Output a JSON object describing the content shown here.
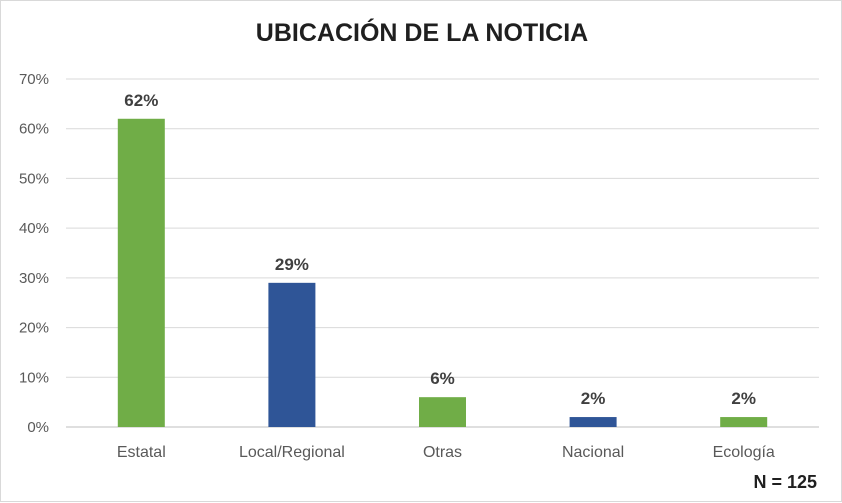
{
  "chart_data": {
    "type": "bar",
    "title": "UBICACIÓN DE LA NOTICIA",
    "categories": [
      "Estatal",
      "Local/Regional",
      "Otras",
      "Nacional",
      "Ecología"
    ],
    "values": [
      62,
      29,
      6,
      2,
      2
    ],
    "data_labels": [
      "62%",
      "29%",
      "6%",
      "2%",
      "2%"
    ],
    "bar_colors": [
      "#70ad47",
      "#2f5597",
      "#70ad47",
      "#2f5597",
      "#70ad47"
    ],
    "ylim": [
      0,
      70
    ],
    "yticks": [
      0,
      10,
      20,
      30,
      40,
      50,
      60,
      70
    ],
    "ytick_labels": [
      "0%",
      "10%",
      "20%",
      "30%",
      "40%",
      "50%",
      "60%",
      "70%"
    ],
    "grid": true,
    "xlabel": "",
    "ylabel": "",
    "note": "N = 125"
  }
}
